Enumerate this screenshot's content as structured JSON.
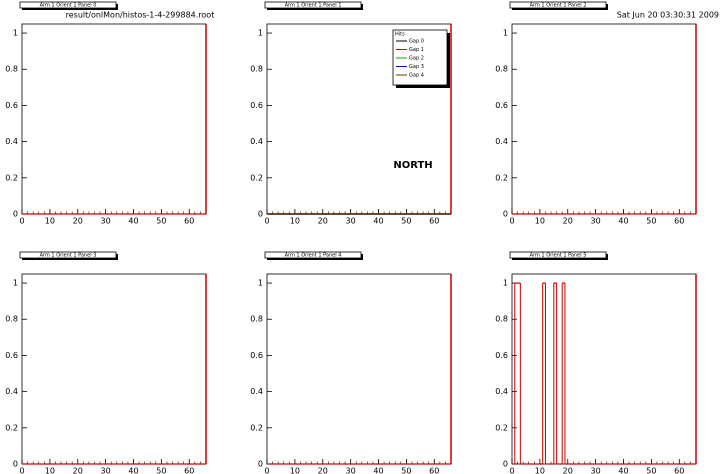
{
  "canvas": {
    "file": "result/onlMon/histos-1-4-299884.root",
    "date": "Sat Jun 20 03:30:31 2009"
  },
  "chart_data": [
    {
      "type": "histogram",
      "title": "Arm 1 Orient 1 Panel 0",
      "xlim": [
        0,
        66
      ],
      "xticks": [
        0,
        10,
        20,
        30,
        40,
        50,
        60
      ],
      "ylim": [
        0,
        1.05
      ],
      "yticks": [
        0,
        0.2,
        0.4,
        0.6,
        0.8,
        1
      ],
      "series": [
        {
          "color": "#cc0000",
          "bins": [
            0,
            66
          ],
          "values": [
            0
          ]
        }
      ]
    },
    {
      "type": "histogram",
      "title": "Arm 1 Orient 1 Panel 1",
      "xlim": [
        0,
        66
      ],
      "xticks": [
        0,
        10,
        20,
        30,
        40,
        50,
        60
      ],
      "ylim": [
        0,
        1.05
      ],
      "yticks": [
        0,
        0.2,
        0.4,
        0.6,
        0.8,
        1
      ],
      "legend_title": "Hits",
      "annotation": "NORTH",
      "series": [
        {
          "name": "Gap 0",
          "color": "#000000",
          "bins": [
            0,
            66
          ],
          "values": [
            0
          ]
        },
        {
          "name": "Gap 1",
          "color": "#cc0000",
          "bins": [
            0,
            66
          ],
          "values": [
            0
          ]
        },
        {
          "name": "Gap 2",
          "color": "#00aa00",
          "bins": [
            0,
            66
          ],
          "values": [
            0
          ]
        },
        {
          "name": "Gap 3",
          "color": "#0000cc",
          "bins": [
            0,
            66
          ],
          "values": [
            0
          ]
        },
        {
          "name": "Gap 4",
          "color": "#663300",
          "bins": [
            0,
            66
          ],
          "values": [
            0
          ]
        }
      ]
    },
    {
      "type": "histogram",
      "title": "Arm 1 Orient 1 Panel 2",
      "xlim": [
        0,
        66
      ],
      "xticks": [
        0,
        10,
        20,
        30,
        40,
        50,
        60
      ],
      "ylim": [
        0,
        1.05
      ],
      "yticks": [
        0,
        0.2,
        0.4,
        0.6,
        0.8,
        1
      ],
      "series": [
        {
          "color": "#cc0000",
          "bins": [
            0,
            66
          ],
          "values": [
            0
          ]
        }
      ]
    },
    {
      "type": "histogram",
      "title": "Arm 1 Orient 1 Panel 3",
      "xlim": [
        0,
        66
      ],
      "xticks": [
        0,
        10,
        20,
        30,
        40,
        50,
        60
      ],
      "ylim": [
        0,
        1.05
      ],
      "yticks": [
        0,
        0.2,
        0.4,
        0.6,
        0.8,
        1
      ],
      "series": [
        {
          "color": "#cc0000",
          "bins": [
            0,
            66
          ],
          "values": [
            0
          ]
        }
      ]
    },
    {
      "type": "histogram",
      "title": "Arm 1 Orient 1 Panel 4",
      "xlim": [
        0,
        66
      ],
      "xticks": [
        0,
        10,
        20,
        30,
        40,
        50,
        60
      ],
      "ylim": [
        0,
        1.05
      ],
      "yticks": [
        0,
        0.2,
        0.4,
        0.6,
        0.8,
        1
      ],
      "series": [
        {
          "color": "#cc0000",
          "bins": [
            0,
            66
          ],
          "values": [
            0
          ]
        }
      ]
    },
    {
      "type": "histogram",
      "title": "Arm 1 Orient 1 Panel 5",
      "xlim": [
        0,
        66
      ],
      "xticks": [
        0,
        10,
        20,
        30,
        40,
        50,
        60
      ],
      "ylim": [
        0,
        1.05
      ],
      "yticks": [
        0,
        0.2,
        0.4,
        0.6,
        0.8,
        1
      ],
      "series": [
        {
          "color": "#cc0000",
          "bins": [
            0,
            1,
            3,
            11,
            12,
            15,
            16,
            18,
            19,
            66
          ],
          "values": [
            0,
            1,
            0,
            1,
            0,
            1,
            0,
            1,
            0
          ]
        }
      ]
    }
  ]
}
